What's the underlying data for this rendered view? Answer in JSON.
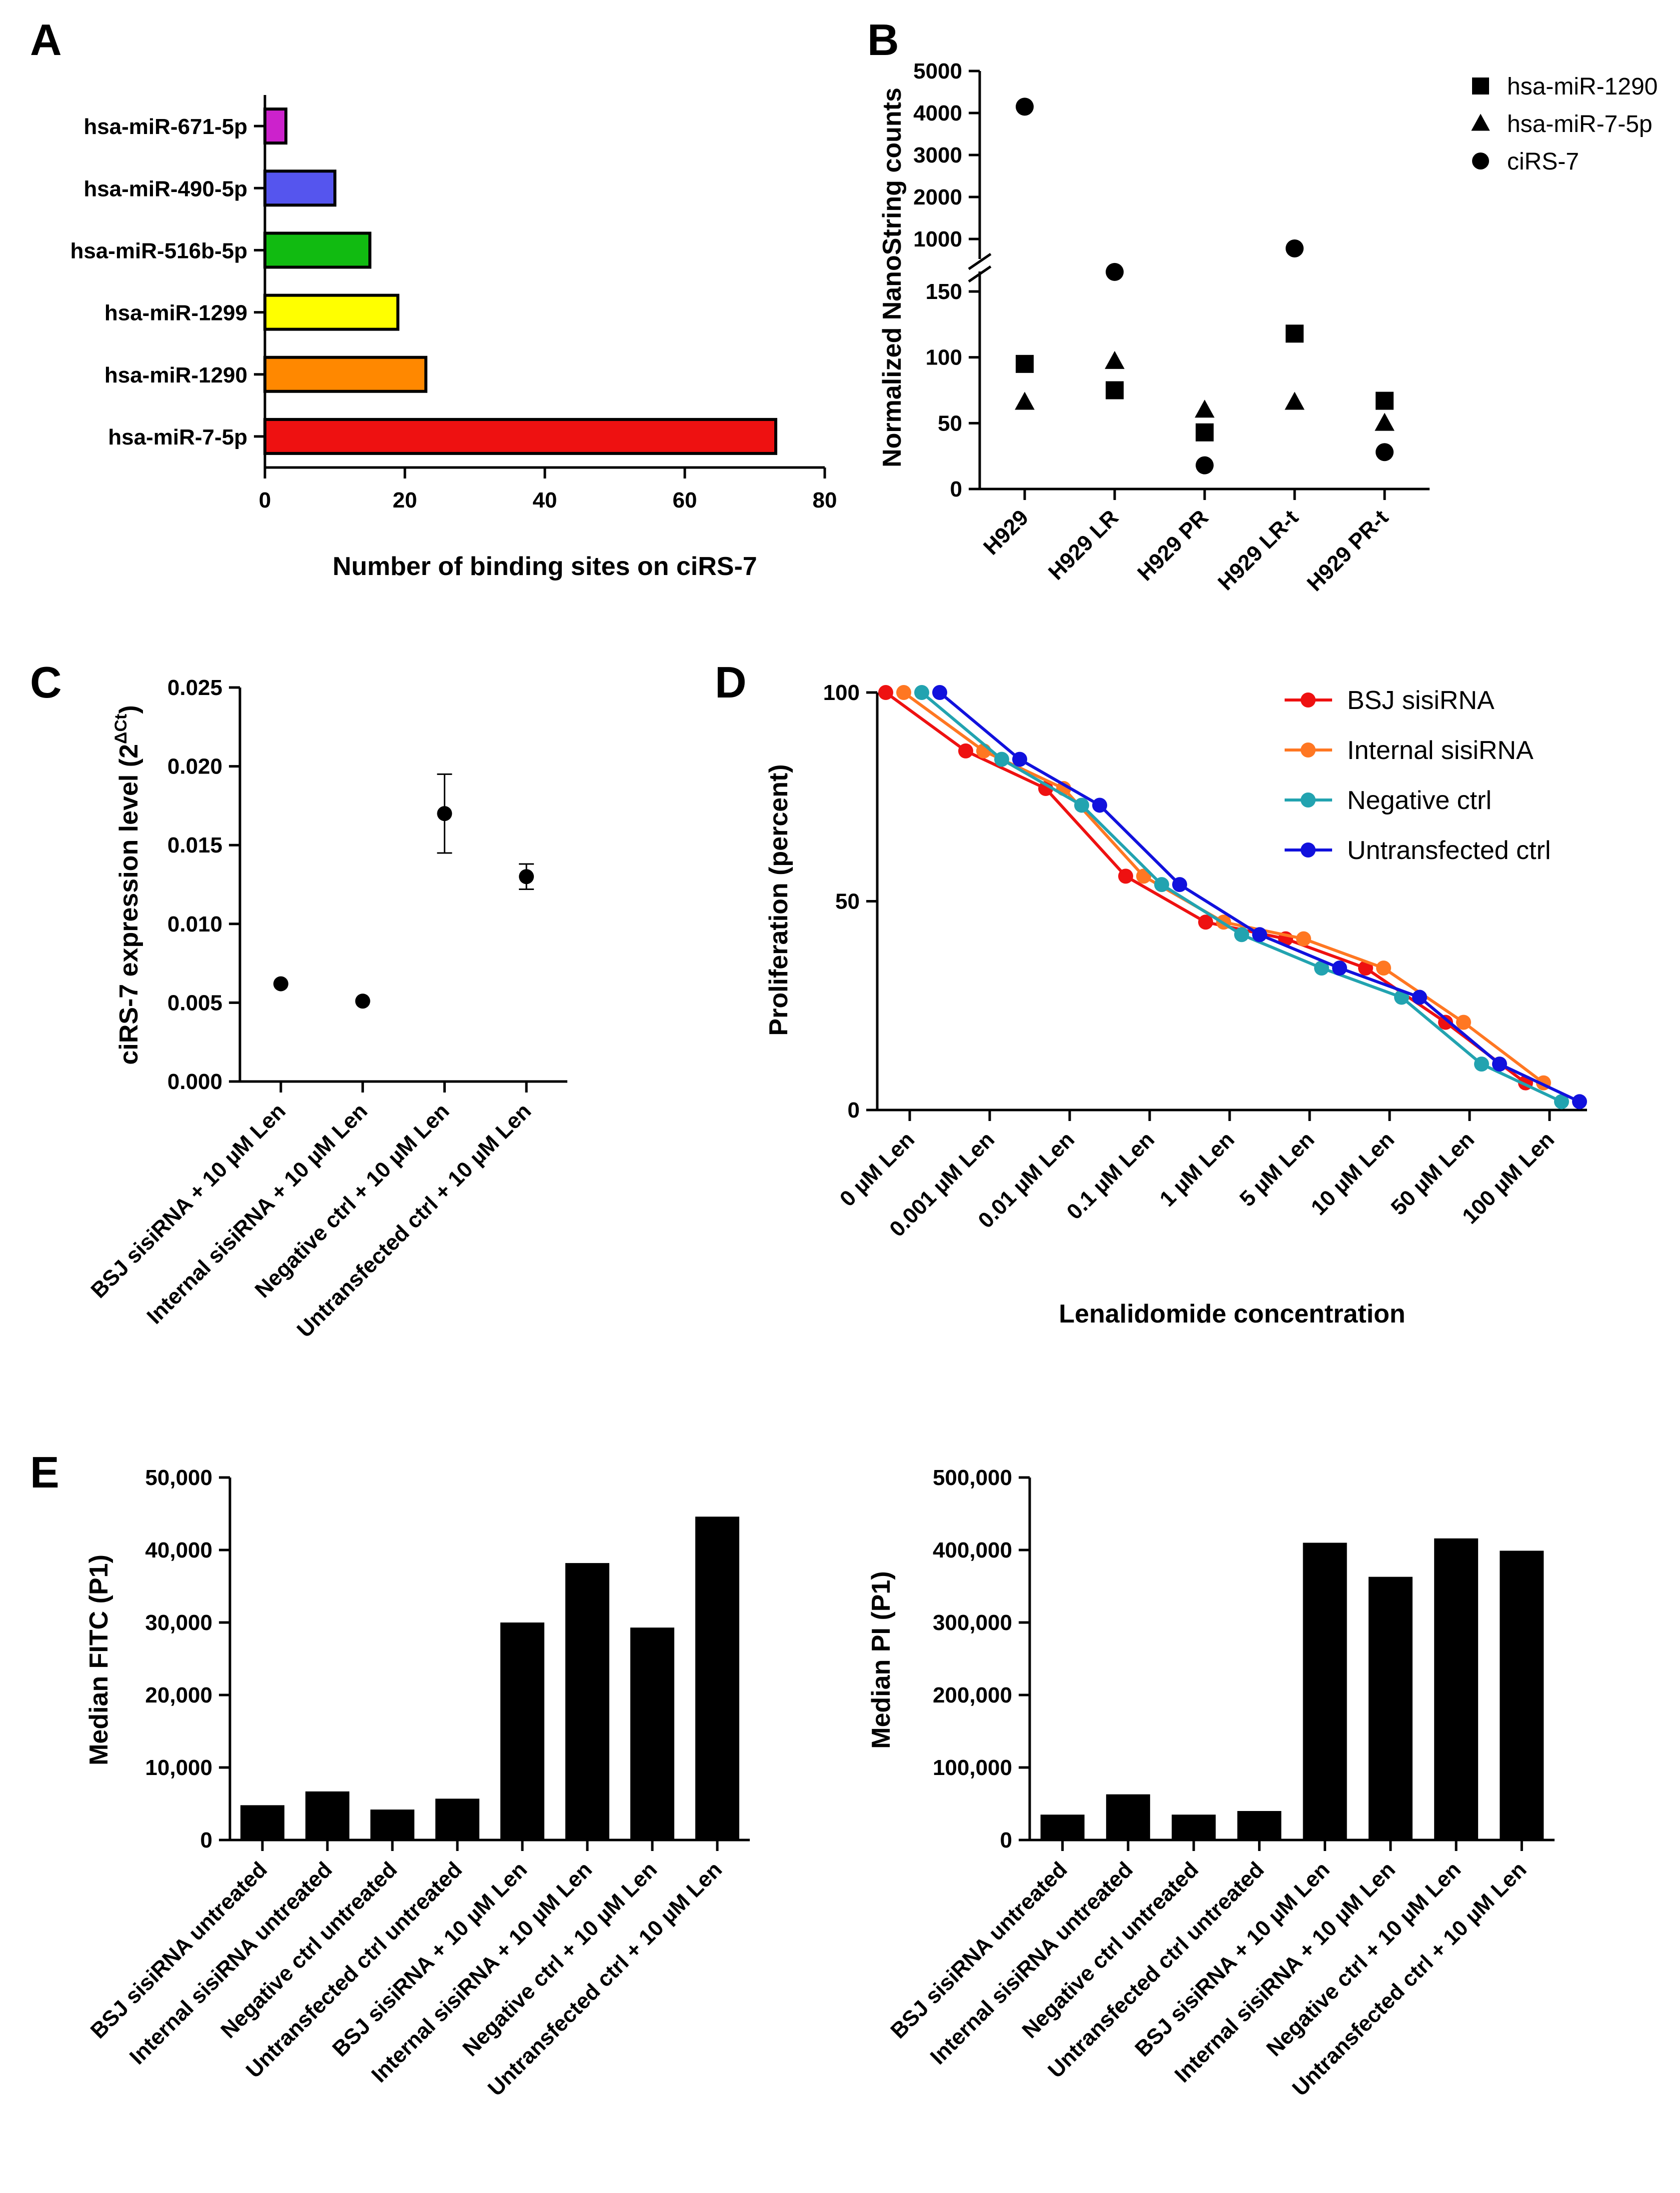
{
  "panels": [
    "A",
    "B",
    "C",
    "D",
    "E"
  ],
  "chart_data": [
    {
      "panel": "A",
      "type": "bar",
      "orientation": "horizontal",
      "categories": [
        "hsa-miR-671-5p",
        "hsa-miR-490-5p",
        "hsa-miR-516b-5p",
        "hsa-miR-1299",
        "hsa-miR-1290",
        "hsa-miR-7-5p"
      ],
      "values": [
        3,
        10,
        15,
        19,
        23,
        73
      ],
      "colors": [
        "#cc22cc",
        "#5555ee",
        "#11bb11",
        "#ffff00",
        "#ff8800",
        "#ee1111"
      ],
      "xlabel": "Number of binding sites on ciRS-7",
      "xlim": [
        0,
        80
      ],
      "xticks": [
        "0",
        "20",
        "40",
        "60",
        "80"
      ]
    },
    {
      "panel": "B",
      "type": "scatter",
      "categories": [
        "H929",
        "H929 LR",
        "H929 PR",
        "H929 LR-t",
        "H929 PR-t"
      ],
      "ylabel": "Normalized NanoString counts",
      "axis_break": true,
      "lower_ylim": [
        0,
        150
      ],
      "upper_ylim": [
        1000,
        5000
      ],
      "yticks_lower": [
        "0",
        "50",
        "100",
        "150"
      ],
      "yticks_upper": [
        "1000",
        "2000",
        "3000",
        "4000",
        "5000"
      ],
      "legend_position": "top-right",
      "series": [
        {
          "name": "hsa-miR-1290",
          "marker": "square",
          "values": [
            95,
            75,
            43,
            118,
            67
          ]
        },
        {
          "name": "hsa-miR-7-5p",
          "marker": "triangle",
          "values": [
            66,
            97,
            60,
            66,
            50
          ]
        },
        {
          "name": "ciRS-7",
          "marker": "circle",
          "values": [
            4150,
            650,
            18,
            900,
            28
          ]
        }
      ]
    },
    {
      "panel": "C",
      "type": "scatter",
      "categories": [
        "BSJ sisiRNA + 10 µM Len",
        "Internal sisiRNA + 10 µM Len",
        "Negative ctrl + 10 µM Len",
        "Untransfected ctrl + 10 µM Len"
      ],
      "values": [
        0.0062,
        0.0051,
        0.017,
        0.013
      ],
      "error": [
        0.0001,
        0.0001,
        0.0025,
        0.0008
      ],
      "ylabel_main": "ciRS-7 expression level (2",
      "ylabel_sup": "ΔCt",
      "ylabel_end": ")",
      "ylim": [
        0,
        0.025
      ],
      "yticks": [
        "0.000",
        "0.005",
        "0.010",
        "0.015",
        "0.020",
        "0.025"
      ]
    },
    {
      "panel": "D",
      "type": "line",
      "categories": [
        "0 µM Len",
        "0.001 µM Len",
        "0.01 µM Len",
        "0.1 µM Len",
        "1 µM Len",
        "5 µM Len",
        "10 µM Len",
        "50 µM Len",
        "100 µM Len"
      ],
      "xlabel": "Lenalidomide concentration",
      "ylabel": "Proliferation (percent)",
      "ylim": [
        0,
        100
      ],
      "yticks": [
        "0",
        "50",
        "100"
      ],
      "legend_position": "top-right",
      "series": [
        {
          "name": "BSJ sisiRNA",
          "color": "#ee1111",
          "values": [
            100,
            86,
            77,
            56,
            45,
            41,
            34,
            21,
            6.5
          ]
        },
        {
          "name": "Internal sisiRNA",
          "color": "#ff7722",
          "values": [
            100,
            86,
            77,
            56,
            45,
            41,
            34,
            21,
            6.5
          ]
        },
        {
          "name": "Negative ctrl",
          "color": "#22a3b0",
          "values": [
            100,
            84,
            73,
            54,
            42,
            34,
            27,
            11,
            2
          ]
        },
        {
          "name": "Untransfected ctrl",
          "color": "#1111dd",
          "values": [
            100,
            84,
            73,
            54,
            42,
            34,
            27,
            11,
            2
          ]
        }
      ]
    },
    {
      "panel": "E",
      "type": "bar",
      "categories": [
        "BSJ sisiRNA untreated",
        "Internal sisiRNA untreated",
        "Negative ctrl untreated",
        "Untransfected ctrl untreated",
        "BSJ sisiRNA + 10 µM Len",
        "Internal sisiRNA + 10 µM Len",
        "Negative ctrl + 10 µM Len",
        "Untransfected ctrl + 10 µM Len"
      ],
      "ylabel": "Median FITC (P1)",
      "ylim": [
        0,
        50000
      ],
      "yticks": [
        "0",
        "10,000",
        "20,000",
        "30,000",
        "40,000",
        "50,000"
      ],
      "values": [
        4800,
        6700,
        4200,
        5700,
        30000,
        38200,
        29300,
        44600
      ]
    },
    {
      "panel": "E",
      "type": "bar",
      "categories": [
        "BSJ sisiRNA untreated",
        "Internal sisiRNA untreated",
        "Negative ctrl untreated",
        "Untransfected ctrl untreated",
        "BSJ sisiRNA + 10 µM Len",
        "Internal sisiRNA + 10 µM Len",
        "Negative ctrl + 10 µM Len",
        "Untransfected ctrl + 10 µM Len"
      ],
      "ylabel": "Median PI (P1)",
      "ylim": [
        0,
        500000
      ],
      "yticks": [
        "0",
        "100,000",
        "200,000",
        "300,000",
        "400,000",
        "500,000"
      ],
      "values": [
        35000,
        63000,
        35000,
        40000,
        410000,
        363000,
        416000,
        399000
      ]
    }
  ]
}
